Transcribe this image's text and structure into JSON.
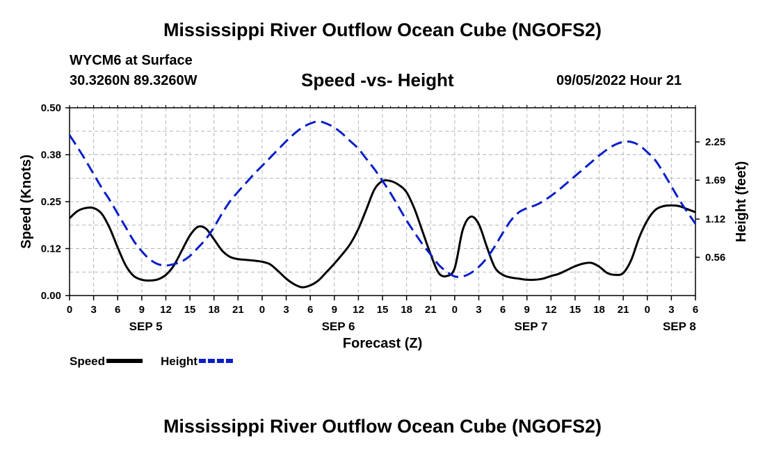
{
  "header": {
    "title": "Mississippi River Outflow Ocean Cube (NGOFS2)",
    "station": "WYCM6 at Surface",
    "coords": "30.3260N  89.3260W",
    "chart_title": "Speed -vs- Height",
    "timestamp": "09/05/2022 Hour 21"
  },
  "footer": {
    "title": "Mississippi River Outflow Ocean Cube (NGOFS2)"
  },
  "colors": {
    "speed": "#000000",
    "height": "#0a1ec8",
    "grid": "#b4b4b4"
  },
  "chart_data": {
    "type": "line",
    "title": "Speed -vs- Height",
    "xlabel": "Forecast (Z)",
    "ylabel": "Speed (Knots)",
    "y2label": "Height (feet)",
    "x_unit": "hours since SEP 5 00Z",
    "xlim": [
      0,
      78
    ],
    "ylim": [
      0,
      0.5
    ],
    "y2lim": [
      0.0,
      2.75
    ],
    "x_ticks": [
      0,
      3,
      6,
      9,
      12,
      15,
      18,
      21,
      24,
      27,
      30,
      33,
      36,
      39,
      42,
      45,
      48,
      51,
      54,
      57,
      60,
      63,
      66,
      69,
      72,
      75,
      78
    ],
    "x_tick_labels": [
      "0",
      "3",
      "6",
      "9",
      "12",
      "15",
      "18",
      "21",
      "0",
      "3",
      "6",
      "9",
      "12",
      "15",
      "18",
      "21",
      "0",
      "3",
      "6",
      "9",
      "12",
      "15",
      "18",
      "21",
      "0",
      "3",
      "6"
    ],
    "y_ticks": [
      0,
      0.125,
      0.25,
      0.375,
      0.5
    ],
    "y_tick_labels": [
      "0.00",
      "0.12",
      "0.25",
      "0.38",
      "0.50"
    ],
    "y2_ticks": [
      0.56,
      1.12,
      1.69,
      2.25
    ],
    "y2_tick_labels": [
      "0.56",
      "1.12",
      "1.69",
      "2.25"
    ],
    "date_labels": [
      {
        "x": 9.5,
        "label": "SEP 5"
      },
      {
        "x": 33.5,
        "label": "SEP 6"
      },
      {
        "x": 57.5,
        "label": "SEP 7"
      },
      {
        "x": 76,
        "label": "SEP 8"
      }
    ],
    "grid": true,
    "legend": [
      {
        "label": "Speed",
        "series": "speed",
        "style": "solid"
      },
      {
        "label": "Height",
        "series": "height",
        "style": "dashed"
      }
    ],
    "legend_position": "bottom-left",
    "series": [
      {
        "name": "Speed",
        "key": "speed",
        "axis": "left",
        "style": "solid",
        "x": [
          0,
          1,
          2,
          3,
          4,
          5,
          6,
          7,
          8,
          9,
          10,
          11,
          12,
          13,
          14,
          15,
          16,
          17,
          18,
          19,
          20,
          21,
          22,
          23,
          24,
          25,
          26,
          27,
          28,
          29,
          30,
          31,
          32,
          33,
          34,
          35,
          36,
          37,
          38,
          39,
          40,
          41,
          42,
          43,
          44,
          45,
          46,
          47,
          48,
          49,
          50,
          51,
          52,
          53,
          54,
          55,
          56,
          57,
          58,
          59,
          60,
          61,
          62,
          63,
          64,
          65,
          66,
          67,
          68,
          69,
          70,
          71,
          72,
          73,
          74,
          75,
          76,
          77,
          78
        ],
        "values": [
          0.206,
          0.225,
          0.233,
          0.233,
          0.218,
          0.18,
          0.128,
          0.08,
          0.052,
          0.042,
          0.04,
          0.043,
          0.055,
          0.08,
          0.12,
          0.16,
          0.183,
          0.178,
          0.15,
          0.12,
          0.103,
          0.097,
          0.095,
          0.093,
          0.09,
          0.083,
          0.065,
          0.045,
          0.03,
          0.022,
          0.027,
          0.04,
          0.062,
          0.085,
          0.11,
          0.138,
          0.178,
          0.23,
          0.283,
          0.305,
          0.305,
          0.295,
          0.275,
          0.23,
          0.17,
          0.11,
          0.06,
          0.052,
          0.073,
          0.175,
          0.21,
          0.19,
          0.13,
          0.075,
          0.055,
          0.048,
          0.045,
          0.042,
          0.042,
          0.045,
          0.052,
          0.058,
          0.068,
          0.078,
          0.085,
          0.087,
          0.077,
          0.06,
          0.055,
          0.06,
          0.095,
          0.155,
          0.2,
          0.228,
          0.238,
          0.24,
          0.238,
          0.23,
          0.222
        ]
      },
      {
        "name": "Height",
        "key": "height",
        "axis": "right",
        "style": "dashed",
        "x": [
          0,
          1,
          2,
          3,
          4,
          5,
          6,
          7,
          8,
          9,
          10,
          11,
          12,
          13,
          14,
          15,
          16,
          17,
          18,
          19,
          20,
          21,
          22,
          23,
          24,
          25,
          26,
          27,
          28,
          29,
          30,
          31,
          32,
          33,
          34,
          35,
          36,
          37,
          38,
          39,
          40,
          41,
          42,
          43,
          44,
          45,
          46,
          47,
          48,
          49,
          50,
          51,
          52,
          53,
          54,
          55,
          56,
          57,
          58,
          59,
          60,
          61,
          62,
          63,
          64,
          65,
          66,
          67,
          68,
          69,
          70,
          71,
          72,
          73,
          74,
          75,
          76,
          77,
          78
        ],
        "values": [
          2.35,
          2.17,
          1.98,
          1.78,
          1.58,
          1.4,
          1.2,
          1.0,
          0.8,
          0.65,
          0.53,
          0.46,
          0.44,
          0.46,
          0.5,
          0.58,
          0.7,
          0.83,
          1.0,
          1.2,
          1.38,
          1.52,
          1.65,
          1.78,
          1.9,
          2.02,
          2.14,
          2.26,
          2.37,
          2.46,
          2.52,
          2.55,
          2.52,
          2.46,
          2.37,
          2.26,
          2.15,
          2.0,
          1.85,
          1.68,
          1.5,
          1.3,
          1.1,
          0.92,
          0.75,
          0.6,
          0.45,
          0.35,
          0.28,
          0.28,
          0.33,
          0.42,
          0.55,
          0.72,
          0.92,
          1.1,
          1.22,
          1.28,
          1.32,
          1.38,
          1.46,
          1.55,
          1.65,
          1.75,
          1.85,
          1.95,
          2.05,
          2.14,
          2.21,
          2.25,
          2.25,
          2.2,
          2.1,
          1.98,
          1.8,
          1.6,
          1.4,
          1.22,
          1.05
        ]
      }
    ]
  }
}
